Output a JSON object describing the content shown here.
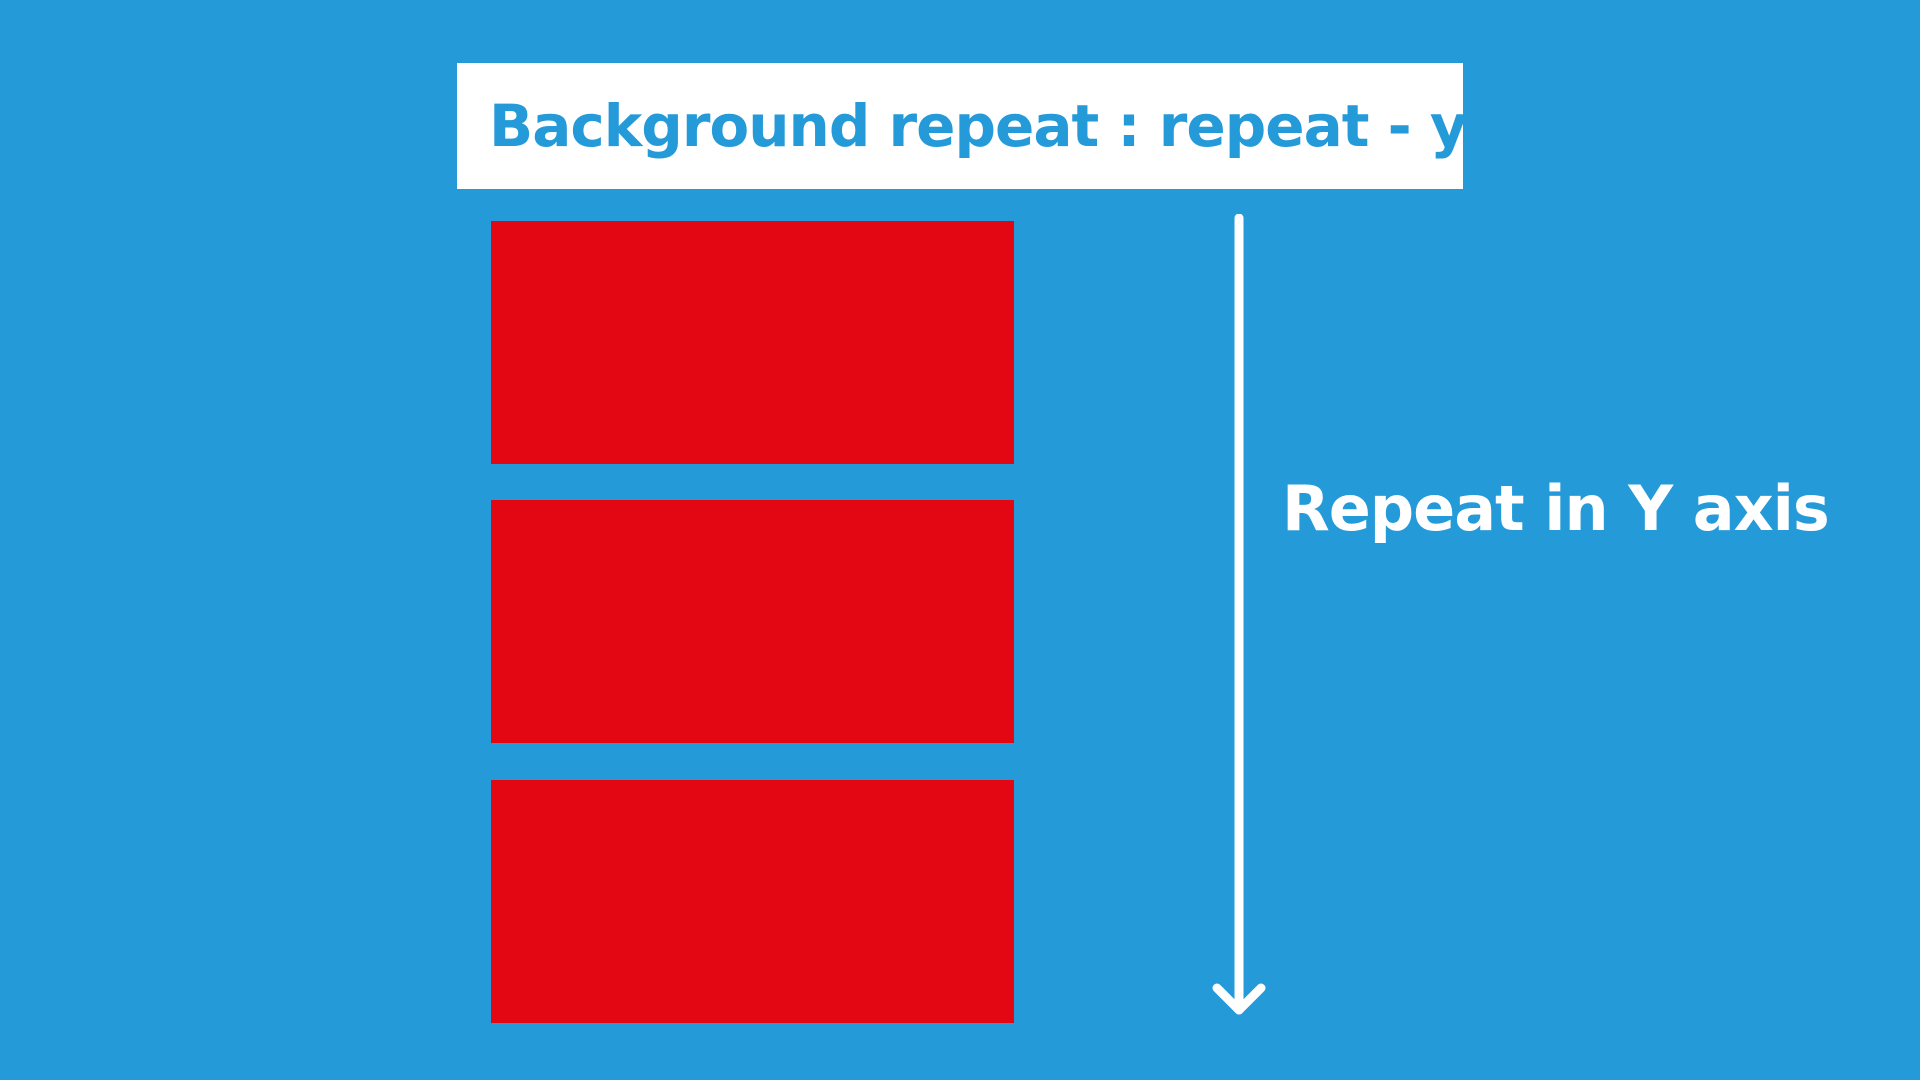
{
  "title": "Background repeat : repeat - y",
  "axis_label": "Repeat in Y axis",
  "colors": {
    "background": "#249ad9",
    "title_box": "#ffffff",
    "title_text": "#249ad9",
    "tile": "#e30613",
    "arrow": "#ffffff",
    "axis_label": "#ffffff"
  },
  "icons": {
    "arrow": "arrow-down-icon"
  }
}
